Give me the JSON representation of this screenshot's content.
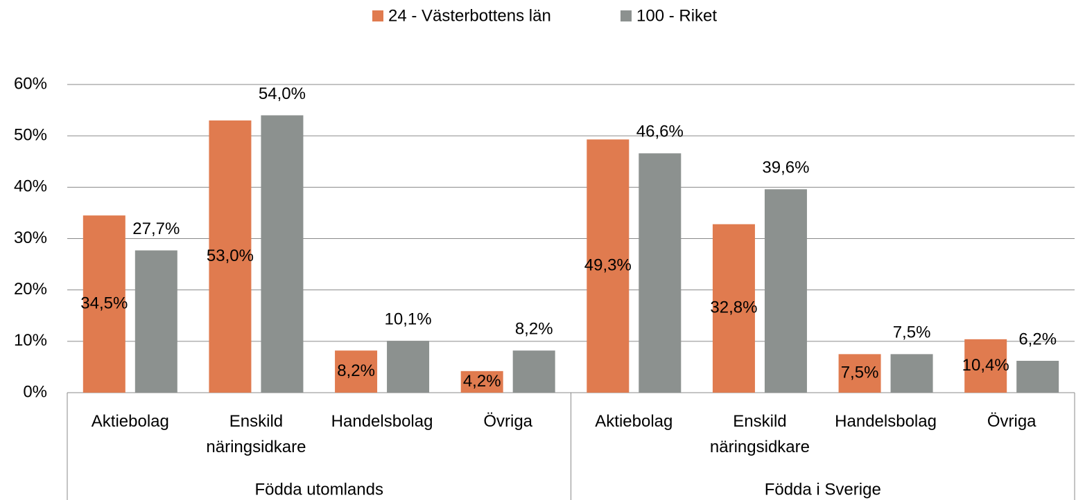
{
  "chart_data": {
    "type": "bar",
    "categories": [
      "Aktiebolag",
      "Enskild näringsidkare",
      "Handelsbolag",
      "Övriga",
      "Aktiebolag",
      "Enskild näringsidkare",
      "Handelsbolag",
      "Övriga"
    ],
    "groups": [
      "Födda utomlands",
      "Födda i Sverige"
    ],
    "series": [
      {
        "name": "24 - Västerbottens län",
        "color": "#e07b4f",
        "values": [
          34.5,
          53.0,
          8.2,
          4.2,
          49.3,
          32.8,
          7.5,
          10.4
        ],
        "value_labels": [
          "34,5%",
          "53,0%",
          "8,2%",
          "4,2%",
          "49,3%",
          "32,8%",
          "7,5%",
          "10,4%"
        ]
      },
      {
        "name": "100 - Riket",
        "color": "#8c918f",
        "values": [
          27.7,
          54.0,
          10.1,
          8.2,
          46.6,
          39.6,
          7.5,
          6.2
        ],
        "value_labels": [
          "27,7%",
          "54,0%",
          "10,1%",
          "8,2%",
          "46,6%",
          "39,6%",
          "7,5%",
          "6,2%"
        ]
      }
    ],
    "ylim": [
      0,
      60
    ],
    "yticks": [
      {
        "value": 0,
        "label": "0%"
      },
      {
        "value": 10,
        "label": "10%"
      },
      {
        "value": 20,
        "label": "20%"
      },
      {
        "value": 30,
        "label": "30%"
      },
      {
        "value": 40,
        "label": "40%"
      },
      {
        "value": 50,
        "label": "50%"
      },
      {
        "value": 60,
        "label": "60%"
      }
    ],
    "grid": true,
    "legend": "top"
  }
}
